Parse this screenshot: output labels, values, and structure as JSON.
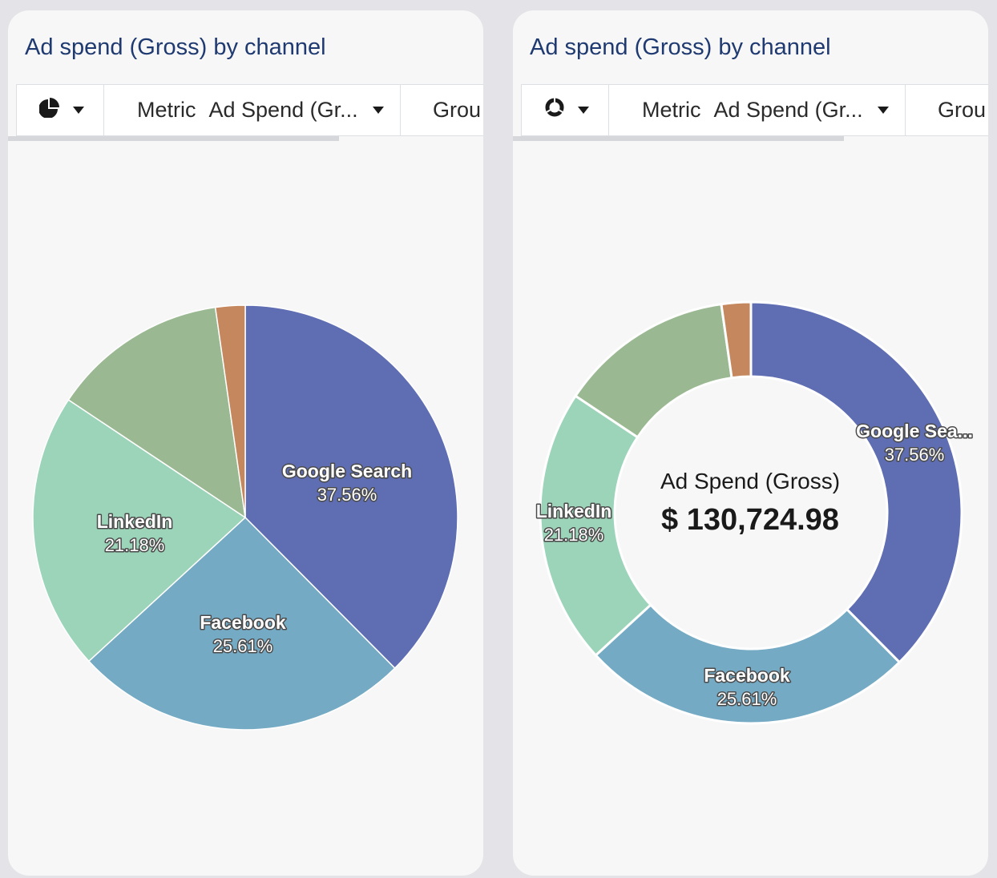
{
  "cards": [
    {
      "title": "Ad spend (Gross) by channel",
      "toolbar": {
        "chart_type_icon": "pie-chart-icon",
        "metric_label": "Metric",
        "metric_value": "Ad Spend (Gr...",
        "group_label": "Grou"
      }
    },
    {
      "title": "Ad spend (Gross) by channel",
      "toolbar": {
        "chart_type_icon": "donut-chart-icon",
        "metric_label": "Metric",
        "metric_value": "Ad Spend (Gr...",
        "group_label": "Grou"
      },
      "center": {
        "label": "Ad Spend (Gross)",
        "value": "$ 130,724.98"
      }
    }
  ],
  "chart_data": [
    {
      "type": "pie",
      "title": "Ad spend (Gross) by channel",
      "slices": [
        {
          "label": "Google Search",
          "display_label": "Google Search",
          "value": 37.56,
          "pct_text": "37.56%",
          "color": "#5f6db2",
          "show_label": true
        },
        {
          "label": "Facebook",
          "display_label": "Facebook",
          "value": 25.61,
          "pct_text": "25.61%",
          "color": "#75aac4",
          "show_label": true
        },
        {
          "label": "LinkedIn",
          "display_label": "LinkedIn",
          "value": 21.18,
          "pct_text": "21.18%",
          "color": "#9cd4b9",
          "show_label": true
        },
        {
          "label": "",
          "display_label": "",
          "value": 13.4,
          "pct_text": "",
          "color": "#9ab891",
          "show_label": false
        },
        {
          "label": "",
          "display_label": "",
          "value": 2.25,
          "pct_text": "",
          "color": "#c5885e",
          "show_label": false
        }
      ]
    },
    {
      "type": "donut",
      "title": "Ad spend (Gross) by channel",
      "total_label": "Ad Spend (Gross)",
      "total_value": "$ 130,724.98",
      "slices": [
        {
          "label": "Google Search",
          "display_label": "Google Sea...",
          "value": 37.56,
          "pct_text": "37.56%",
          "color": "#5f6db2",
          "show_label": true
        },
        {
          "label": "Facebook",
          "display_label": "Facebook",
          "value": 25.61,
          "pct_text": "25.61%",
          "color": "#75aac4",
          "show_label": true
        },
        {
          "label": "LinkedIn",
          "display_label": "LinkedIn",
          "value": 21.18,
          "pct_text": "21.18%",
          "color": "#9cd4b9",
          "show_label": true
        },
        {
          "label": "",
          "display_label": "",
          "value": 13.4,
          "pct_text": "",
          "color": "#9ab891",
          "show_label": false
        },
        {
          "label": "",
          "display_label": "",
          "value": 2.25,
          "pct_text": "",
          "color": "#c5885e",
          "show_label": false
        }
      ]
    }
  ]
}
